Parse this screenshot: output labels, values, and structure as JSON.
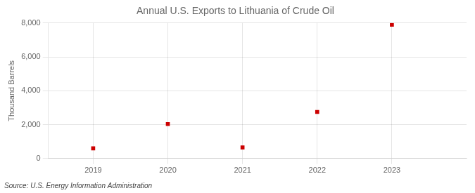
{
  "chart_data": {
    "type": "scatter",
    "title": "Annual U.S. Exports to Lithuania of Crude Oil",
    "y_label": "Thousand Barrels",
    "annotations": [
      "Source: U.S. Energy Information Administration"
    ],
    "x": [
      2019,
      2020,
      2021,
      2022,
      2023
    ],
    "values": [
      600,
      2035,
      650,
      2750,
      7900
    ],
    "color": "#cc0000",
    "marker": "square",
    "xlim": [
      2018.4,
      2024.0
    ],
    "xticks": [
      2019,
      2020,
      2021,
      2022,
      2023
    ],
    "ylim": [
      0,
      8000
    ],
    "yticks": [
      0,
      {
        "value": 2000,
        "label": "2,000"
      },
      {
        "value": 4000,
        "label": "4,000"
      },
      {
        "value": 6000,
        "label": "6,000"
      },
      {
        "value": 8000,
        "label": "8,000"
      }
    ],
    "grid": true
  }
}
